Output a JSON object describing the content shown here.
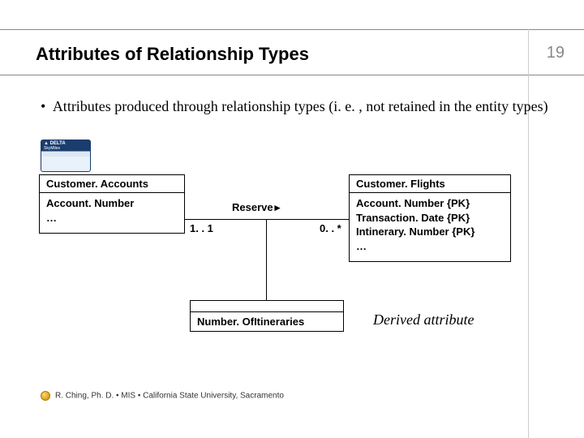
{
  "page": {
    "title": "Attributes of Relationship Types",
    "number": "19",
    "bullet": "Attributes produced through relationship types (i. e. , not retained in the entity types)"
  },
  "card": {
    "line1": "▲ DELTA",
    "line2": "SkyMiles"
  },
  "leftEntity": {
    "name": "Customer. Accounts",
    "attrs": [
      "Account. Number",
      "…"
    ]
  },
  "rightEntity": {
    "name": "Customer. Flights",
    "attrs": [
      "Account. Number {PK}",
      "Transaction. Date {PK}",
      "Intinerary. Number {PK}",
      "…"
    ]
  },
  "relationship": {
    "label": "Reserve",
    "leftCard": "1. . 1",
    "rightCard": "0. . *"
  },
  "assocAttr": {
    "label": "Number. OfItineraries"
  },
  "derived": {
    "label": "Derived attribute"
  },
  "footer": {
    "text": "R. Ching, Ph. D. • MIS  • California State University, Sacramento"
  },
  "colors": {
    "text": "#000000",
    "muted": "#888888",
    "line": "#000000",
    "background": "#ffffff"
  }
}
